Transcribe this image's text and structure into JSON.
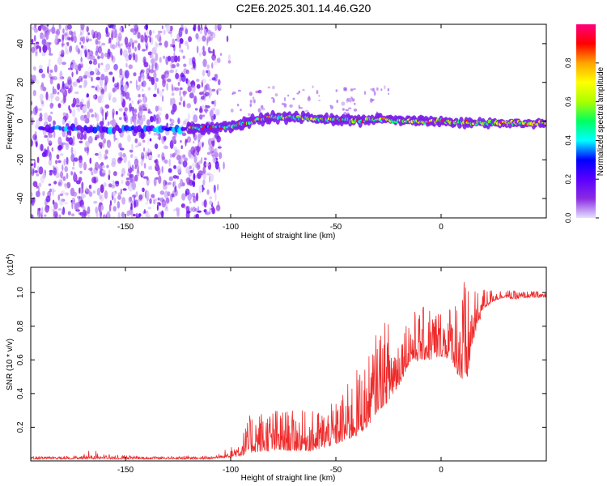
{
  "chart_data": [
    {
      "type": "heatmap",
      "title": "C2E6.2025.301.14.46.G20",
      "xlabel": "Height of straight line (km)",
      "ylabel": "Frequency (Hz)",
      "xlim": [
        -195,
        50
      ],
      "ylim": [
        -50,
        50
      ],
      "xticks": [
        -150,
        -100,
        -50,
        0
      ],
      "yticks": [
        -40,
        -20,
        0,
        20,
        40
      ],
      "colorbar": {
        "label": "Normalized spectral amplitude",
        "range": [
          0,
          1
        ],
        "ticks": [
          "0.0",
          "0.2",
          "0.4",
          "0.6",
          "0.8"
        ],
        "colors": [
          "#e6e0ff",
          "#8a2be2",
          "#5a00ff",
          "#0000ff",
          "#00ffff",
          "#00ff60",
          "#aaff00",
          "#ffff00",
          "#ffa500",
          "#ff0000",
          "#ff007f"
        ]
      },
      "features": {
        "noise_region_km": [
          -195,
          -105
        ],
        "signal_start_km": -120,
        "signal_center_hz": [
          [
            -120,
            -4
          ],
          [
            -100,
            -3
          ],
          [
            -90,
            0
          ],
          [
            -80,
            2
          ],
          [
            -70,
            2
          ],
          [
            -60,
            1
          ],
          [
            -50,
            1
          ],
          [
            -40,
            0
          ],
          [
            -30,
            1
          ],
          [
            -20,
            0
          ],
          [
            -10,
            0
          ],
          [
            0,
            0
          ],
          [
            10,
            -1
          ],
          [
            20,
            -1
          ],
          [
            30,
            -1
          ],
          [
            40,
            -1
          ],
          [
            50,
            -1
          ]
        ]
      }
    },
    {
      "type": "line",
      "xlabel": "Height of straight line (km)",
      "ylabel": "SNR (10 * v/v)",
      "scale_label": "(x10",
      "scale_exponent": "4",
      "scale_suffix": ")",
      "xlim": [
        -195,
        50
      ],
      "ylim": [
        0,
        1.15
      ],
      "xticks": [
        -150,
        -100,
        -50,
        0
      ],
      "yticks": [
        "0.2",
        "0.4",
        "0.6",
        "0.8",
        "1.0"
      ],
      "color": "#ef2a2a",
      "series_envelope": {
        "x": [
          -195,
          -175,
          -170,
          -165,
          -160,
          -140,
          -120,
          -110,
          -100,
          -95,
          -90,
          -80,
          -70,
          -60,
          -50,
          -45,
          -40,
          -35,
          -30,
          -25,
          -20,
          -15,
          -10,
          -5,
          0,
          5,
          10,
          12,
          15,
          20,
          25,
          30,
          35,
          40,
          45,
          50
        ],
        "baseline": [
          0.01,
          0.01,
          0.01,
          0.01,
          0.01,
          0.01,
          0.01,
          0.01,
          0.02,
          0.03,
          0.05,
          0.06,
          0.06,
          0.06,
          0.1,
          0.12,
          0.15,
          0.2,
          0.3,
          0.35,
          0.45,
          0.58,
          0.6,
          0.6,
          0.62,
          0.6,
          0.45,
          0.45,
          0.7,
          0.9,
          0.95,
          0.97,
          0.96,
          0.97,
          0.97,
          0.97
        ],
        "peak": [
          0.03,
          0.03,
          0.05,
          0.07,
          0.04,
          0.03,
          0.03,
          0.03,
          0.08,
          0.15,
          0.3,
          0.32,
          0.3,
          0.3,
          0.35,
          0.45,
          0.55,
          0.6,
          0.8,
          0.85,
          0.8,
          0.9,
          0.9,
          0.95,
          0.92,
          0.95,
          1.15,
          1.05,
          1.0,
          1.03,
          1.02,
          1.02,
          1.01,
          1.01,
          1.01,
          1.01
        ]
      }
    }
  ]
}
